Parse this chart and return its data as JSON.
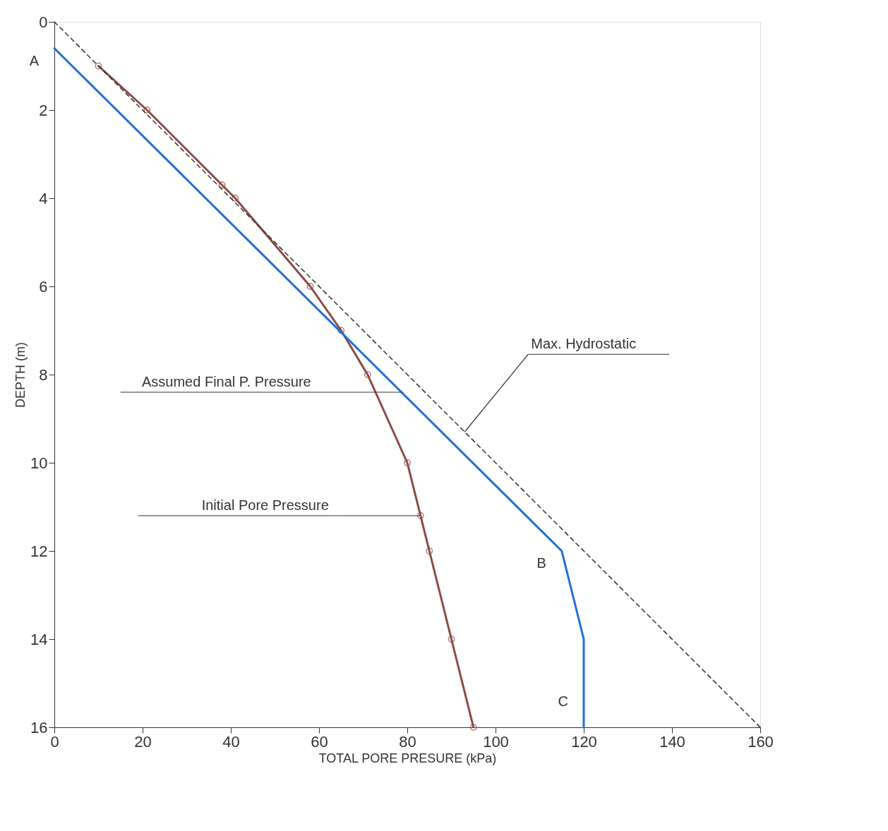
{
  "chart_data": {
    "type": "line",
    "xlabel": "TOTAL PORE PRESURE (kPa)",
    "ylabel": "DEPTH (m)",
    "xlim": [
      0,
      160
    ],
    "xticks": [
      0,
      20,
      40,
      60,
      80,
      100,
      120,
      140,
      160
    ],
    "ylim": [
      16,
      0
    ],
    "yticks": [
      0,
      2,
      4,
      6,
      8,
      10,
      12,
      14,
      16
    ],
    "grid": false,
    "series": [
      {
        "color": "#8b4a48",
        "x": [
          10,
          21,
          38,
          41,
          58,
          65,
          71,
          80,
          83,
          85,
          90,
          95
        ],
        "values": [
          1,
          2,
          3.7,
          4,
          6,
          7,
          8,
          10,
          11.2,
          12,
          14,
          16
        ],
        "marker": "circle",
        "line_style": "solid"
      },
      {
        "color": "#1f6fd6",
        "x": [
          0,
          115,
          120,
          120
        ],
        "values": [
          0.6,
          12,
          14,
          16
        ],
        "marker": "none",
        "line_style": "solid"
      },
      {
        "color": "#333333",
        "x": [
          0,
          160
        ],
        "values": [
          0,
          16
        ],
        "line_style": "dashed",
        "marker": "none"
      }
    ],
    "annotations": [
      {
        "text": "A",
        "x": 0,
        "y": 0.6
      },
      {
        "text": "B",
        "x": 115,
        "y": 12
      },
      {
        "text": "C",
        "x": 120,
        "y": 16
      },
      {
        "text": "Assumed Final P. Pressure",
        "x": 79,
        "y": 8.4
      },
      {
        "text": "Initial Pore Pressure",
        "x": 83,
        "y": 11.2
      },
      {
        "text": "Max. Hydrostatic",
        "x": 93,
        "y": 9.3
      }
    ]
  }
}
